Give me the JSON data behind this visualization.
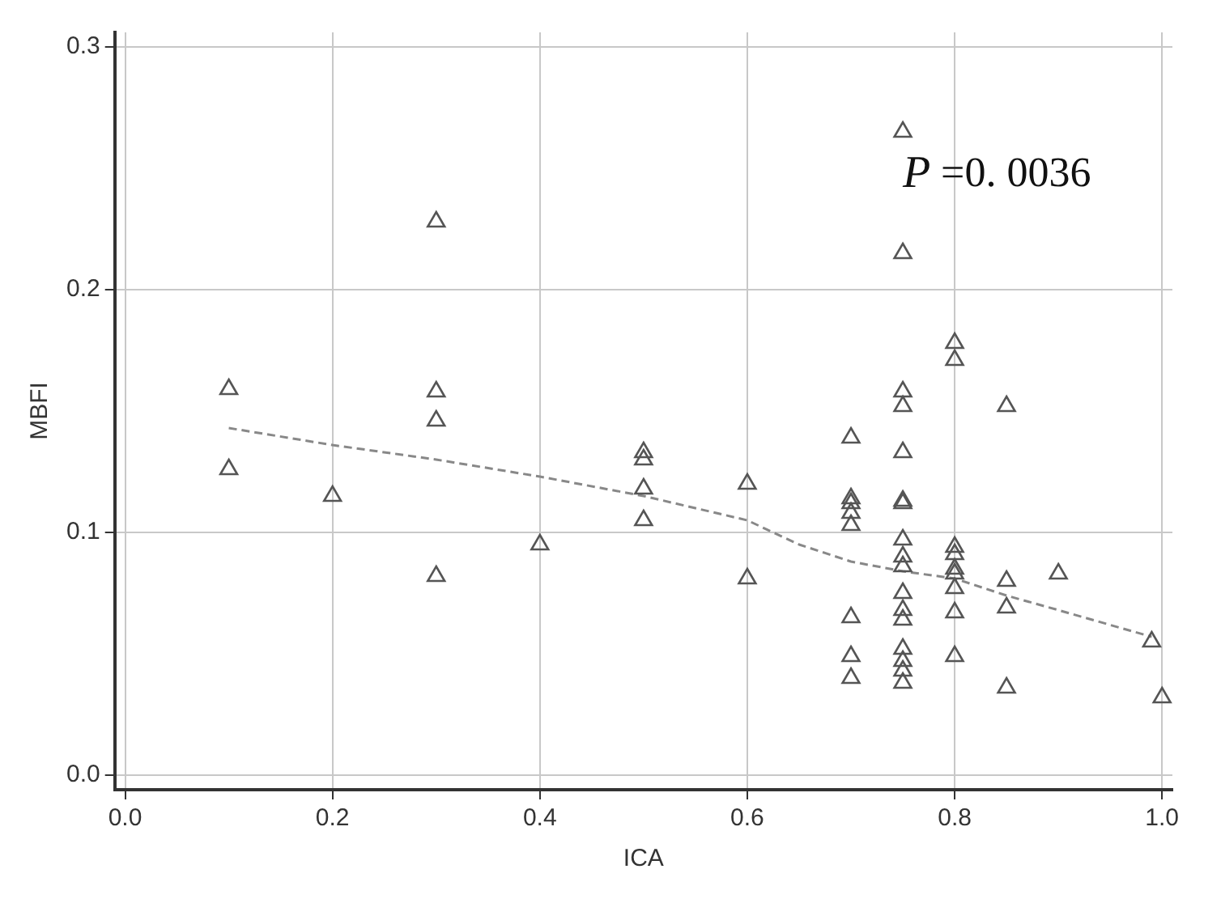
{
  "chart_data": {
    "type": "scatter",
    "xlabel": "ICA",
    "ylabel": "MBFI",
    "xlim": [
      -0.01,
      1.01
    ],
    "ylim": [
      -0.006,
      0.306
    ],
    "xticks": [
      {
        "value": 0,
        "label": "0.0"
      },
      0.2,
      0.4,
      0.6,
      0.8,
      {
        "value": 1,
        "label": "1.0"
      }
    ],
    "yticks": [
      {
        "value": 0,
        "label": "0.0"
      },
      0.1,
      0.2,
      0.3
    ],
    "grid": true,
    "legend": false,
    "annotations": [
      "P =0. 0036"
    ],
    "series": [
      {
        "color": "#555555",
        "marker": "triangle",
        "x": [
          0.1,
          0.1,
          0.2,
          0.3,
          0.3,
          0.3,
          0.3,
          0.4,
          0.5,
          0.5,
          0.5,
          0.5,
          0.6,
          0.6,
          0.7,
          0.7,
          0.7,
          0.7,
          0.7,
          0.7,
          0.7,
          0.7,
          0.75,
          0.75,
          0.75,
          0.75,
          0.75,
          0.75,
          0.75,
          0.75,
          0.75,
          0.75,
          0.75,
          0.75,
          0.75,
          0.75,
          0.75,
          0.75,
          0.75,
          0.8,
          0.8,
          0.8,
          0.8,
          0.8,
          0.8,
          0.8,
          0.8,
          0.8,
          0.85,
          0.85,
          0.85,
          0.85,
          0.9,
          0.99,
          1.0
        ],
        "values": [
          0.159,
          0.126,
          0.115,
          0.228,
          0.158,
          0.146,
          0.082,
          0.095,
          0.133,
          0.13,
          0.118,
          0.105,
          0.12,
          0.081,
          0.139,
          0.114,
          0.112,
          0.108,
          0.103,
          0.065,
          0.049,
          0.04,
          0.265,
          0.215,
          0.158,
          0.152,
          0.133,
          0.113,
          0.112,
          0.097,
          0.09,
          0.086,
          0.075,
          0.068,
          0.064,
          0.052,
          0.047,
          0.043,
          0.038,
          0.178,
          0.171,
          0.094,
          0.091,
          0.085,
          0.083,
          0.077,
          0.067,
          0.049,
          0.152,
          0.08,
          0.069,
          0.036,
          0.083,
          0.055,
          0.032
        ]
      },
      {
        "type": "line",
        "color": "#888888",
        "marker": "none",
        "line_style": "dashed",
        "x": [
          0.1,
          0.2,
          0.3,
          0.4,
          0.5,
          0.6,
          0.65,
          0.7,
          0.75,
          0.8,
          0.85,
          0.9,
          0.99
        ],
        "values": [
          0.143,
          0.136,
          0.13,
          0.123,
          0.115,
          0.105,
          0.095,
          0.088,
          0.084,
          0.081,
          0.074,
          0.068,
          0.057
        ]
      }
    ]
  }
}
